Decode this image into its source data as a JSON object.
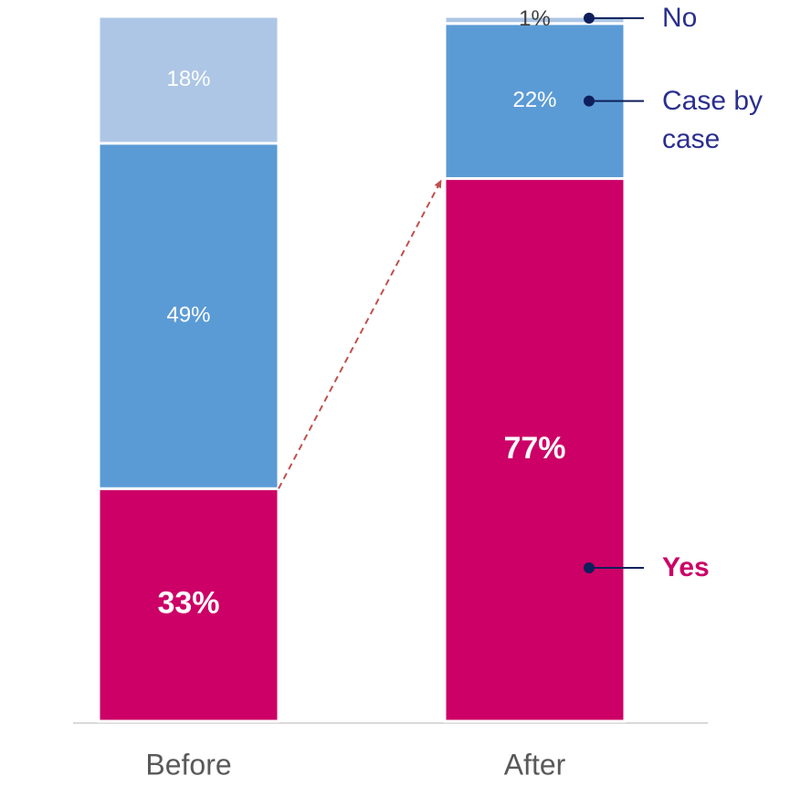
{
  "chart_data": {
    "type": "stacked_bar",
    "categories": [
      "Before",
      "After"
    ],
    "series": [
      {
        "name": "Yes",
        "color": "#cc0066",
        "values": [
          33,
          77
        ],
        "value_labels": [
          "33%",
          "77%"
        ]
      },
      {
        "name": "Case by case",
        "color": "#5b9bd5",
        "values": [
          49,
          22
        ],
        "value_labels": [
          "49%",
          "22%"
        ]
      },
      {
        "name": "No",
        "color": "#adc6e5",
        "values": [
          18,
          1
        ],
        "value_labels": [
          "18%",
          "1%"
        ]
      }
    ]
  }
}
